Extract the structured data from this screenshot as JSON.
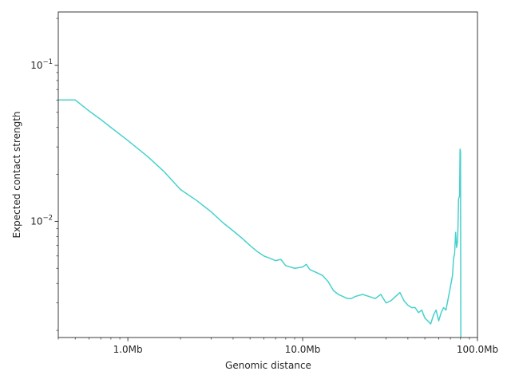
{
  "chart_data": {
    "type": "line",
    "title": "",
    "xlabel": "Genomic distance",
    "ylabel": "Expected contact strength",
    "x_scale": "log",
    "y_scale": "log",
    "xlim": [
      400000,
      100000000
    ],
    "ylim": [
      0.0018,
      0.22
    ],
    "grid": false,
    "legend": "none",
    "line_color": "#48d1cc",
    "x_ticks": [
      {
        "value": 1000000,
        "label": "1.0Mb"
      },
      {
        "value": 10000000,
        "label": "10.0Mb"
      },
      {
        "value": 100000000,
        "label": "100.0Mb"
      }
    ],
    "y_ticks": [
      {
        "value": 0.01,
        "base": "10",
        "exp": "−2"
      },
      {
        "value": 0.1,
        "base": "10",
        "exp": "−1"
      }
    ],
    "series": [
      {
        "x": [
          400000,
          500000,
          600000,
          700000,
          800000,
          1000000,
          1300000,
          1600000,
          2000000,
          2500000,
          3000000,
          3500000,
          4000000,
          4500000,
          5000000,
          5500000,
          6000000,
          6500000,
          7000000,
          7500000,
          8000000,
          9000000,
          10000000,
          10500000,
          11000000,
          12000000,
          13000000,
          14000000,
          15000000,
          16000000,
          17000000,
          18000000,
          19000000,
          20000000,
          22000000,
          24000000,
          26000000,
          28000000,
          30000000,
          32000000,
          34000000,
          36000000,
          38000000,
          40000000,
          42000000,
          44000000,
          46000000,
          48000000,
          50000000,
          52000000,
          54000000,
          56000000,
          58000000,
          60000000,
          62000000,
          64000000,
          66000000,
          68000000,
          70000000,
          72000000,
          73000000,
          74000000,
          75000000,
          76000000,
          77000000,
          78000000,
          79000000,
          79500000,
          80000000,
          80200000,
          80300000
        ],
        "y": [
          0.06,
          0.06,
          0.051,
          0.045,
          0.04,
          0.033,
          0.026,
          0.021,
          0.016,
          0.0135,
          0.0115,
          0.0098,
          0.0087,
          0.0078,
          0.007,
          0.0064,
          0.006,
          0.0058,
          0.0056,
          0.0057,
          0.0052,
          0.005,
          0.0051,
          0.0053,
          0.0049,
          0.0047,
          0.0045,
          0.0041,
          0.0036,
          0.0034,
          0.0033,
          0.0032,
          0.0032,
          0.0033,
          0.0034,
          0.0033,
          0.0032,
          0.0034,
          0.003,
          0.0031,
          0.0033,
          0.0035,
          0.0031,
          0.0029,
          0.0028,
          0.0028,
          0.0026,
          0.0027,
          0.0024,
          0.0023,
          0.0022,
          0.0025,
          0.0027,
          0.0023,
          0.0026,
          0.0028,
          0.0027,
          0.0032,
          0.0038,
          0.0045,
          0.0058,
          0.0062,
          0.0085,
          0.0068,
          0.0075,
          0.014,
          0.0145,
          0.029,
          0.028,
          0.005,
          0.0018
        ]
      }
    ]
  }
}
